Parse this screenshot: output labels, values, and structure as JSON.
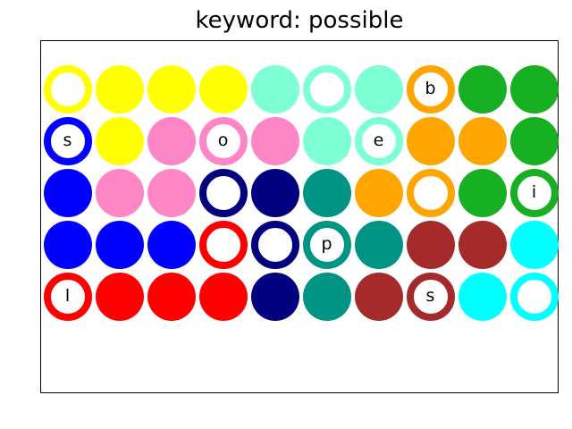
{
  "title": "keyword: possible",
  "colors": {
    "yellow": "#ffff00",
    "aquamarine": "#7fffd4",
    "orange": "#ffa500",
    "green": "#16b022",
    "blue": "#0000ff",
    "pink": "#ff86c6",
    "navy": "#000080",
    "teal": "#009485",
    "red": "#ff0000",
    "brown": "#a52a2a",
    "cyan": "#00ffff"
  },
  "grid": [
    [
      {
        "color": "yellow",
        "hollow": true,
        "letter": ""
      },
      {
        "color": "yellow",
        "hollow": false,
        "letter": ""
      },
      {
        "color": "yellow",
        "hollow": false,
        "letter": ""
      },
      {
        "color": "yellow",
        "hollow": false,
        "letter": ""
      },
      {
        "color": "aquamarine",
        "hollow": false,
        "letter": ""
      },
      {
        "color": "aquamarine",
        "hollow": true,
        "letter": ""
      },
      {
        "color": "aquamarine",
        "hollow": false,
        "letter": ""
      },
      {
        "color": "orange",
        "hollow": true,
        "letter": "b"
      },
      {
        "color": "green",
        "hollow": false,
        "letter": ""
      },
      {
        "color": "green",
        "hollow": false,
        "letter": ""
      }
    ],
    [
      {
        "color": "blue",
        "hollow": true,
        "letter": "s"
      },
      {
        "color": "yellow",
        "hollow": false,
        "letter": ""
      },
      {
        "color": "pink",
        "hollow": false,
        "letter": ""
      },
      {
        "color": "pink",
        "hollow": true,
        "letter": "o"
      },
      {
        "color": "pink",
        "hollow": false,
        "letter": ""
      },
      {
        "color": "aquamarine",
        "hollow": false,
        "letter": ""
      },
      {
        "color": "aquamarine",
        "hollow": true,
        "letter": "e"
      },
      {
        "color": "orange",
        "hollow": false,
        "letter": ""
      },
      {
        "color": "orange",
        "hollow": false,
        "letter": ""
      },
      {
        "color": "green",
        "hollow": false,
        "letter": ""
      }
    ],
    [
      {
        "color": "blue",
        "hollow": false,
        "letter": ""
      },
      {
        "color": "pink",
        "hollow": false,
        "letter": ""
      },
      {
        "color": "pink",
        "hollow": false,
        "letter": ""
      },
      {
        "color": "navy",
        "hollow": true,
        "letter": ""
      },
      {
        "color": "navy",
        "hollow": false,
        "letter": ""
      },
      {
        "color": "teal",
        "hollow": false,
        "letter": ""
      },
      {
        "color": "orange",
        "hollow": false,
        "letter": ""
      },
      {
        "color": "orange",
        "hollow": true,
        "letter": ""
      },
      {
        "color": "green",
        "hollow": false,
        "letter": ""
      },
      {
        "color": "green",
        "hollow": true,
        "letter": "i"
      }
    ],
    [
      {
        "color": "blue",
        "hollow": false,
        "letter": ""
      },
      {
        "color": "blue",
        "hollow": false,
        "letter": ""
      },
      {
        "color": "blue",
        "hollow": false,
        "letter": ""
      },
      {
        "color": "red",
        "hollow": true,
        "letter": ""
      },
      {
        "color": "navy",
        "hollow": true,
        "letter": ""
      },
      {
        "color": "teal",
        "hollow": true,
        "letter": "p"
      },
      {
        "color": "teal",
        "hollow": false,
        "letter": ""
      },
      {
        "color": "brown",
        "hollow": false,
        "letter": ""
      },
      {
        "color": "brown",
        "hollow": false,
        "letter": ""
      },
      {
        "color": "cyan",
        "hollow": false,
        "letter": ""
      }
    ],
    [
      {
        "color": "red",
        "hollow": true,
        "letter": "l"
      },
      {
        "color": "red",
        "hollow": false,
        "letter": ""
      },
      {
        "color": "red",
        "hollow": false,
        "letter": ""
      },
      {
        "color": "red",
        "hollow": false,
        "letter": ""
      },
      {
        "color": "navy",
        "hollow": false,
        "letter": ""
      },
      {
        "color": "teal",
        "hollow": false,
        "letter": ""
      },
      {
        "color": "brown",
        "hollow": false,
        "letter": ""
      },
      {
        "color": "brown",
        "hollow": true,
        "letter": "s"
      },
      {
        "color": "cyan",
        "hollow": false,
        "letter": ""
      },
      {
        "color": "cyan",
        "hollow": true,
        "letter": ""
      }
    ]
  ]
}
